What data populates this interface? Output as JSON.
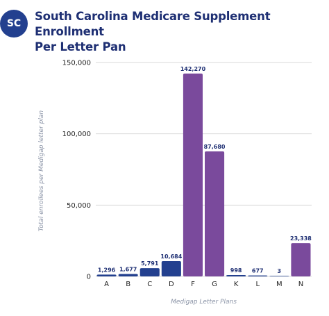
{
  "badge": "SC",
  "title_line1": "South Carolina Medicare Supplement Enrollment",
  "title_line2": "Per Letter Pan",
  "colors": {
    "badge": "#23408f",
    "title": "#1e2f73",
    "bar_blue": "#23408f",
    "bar_purple": "#7a4a9c",
    "grid": "#d9d9d9"
  },
  "chart_data": {
    "type": "bar",
    "categories": [
      "A",
      "B",
      "C",
      "D",
      "F",
      "G",
      "K",
      "L",
      "M",
      "N"
    ],
    "values": [
      1296,
      1677,
      5791,
      10684,
      142270,
      87680,
      998,
      677,
      3,
      23338
    ],
    "value_labels": [
      "1,296",
      "1,677",
      "5,791",
      "10,684",
      "142,270",
      "87,680",
      "998",
      "677",
      "3",
      "23,338"
    ],
    "bar_colors": [
      "blue",
      "blue",
      "blue",
      "blue",
      "purple",
      "purple",
      "blue",
      "blue",
      "blue",
      "purple"
    ],
    "xlabel": "Medigap Letter Plans",
    "ylabel": "Total enrollees per Medigap letter plan",
    "ylim": [
      0,
      150000
    ],
    "yticks": [
      0,
      50000,
      100000,
      150000
    ],
    "ytick_labels": [
      "0",
      "50,000",
      "100,000",
      "150,000"
    ],
    "grid": true
  }
}
